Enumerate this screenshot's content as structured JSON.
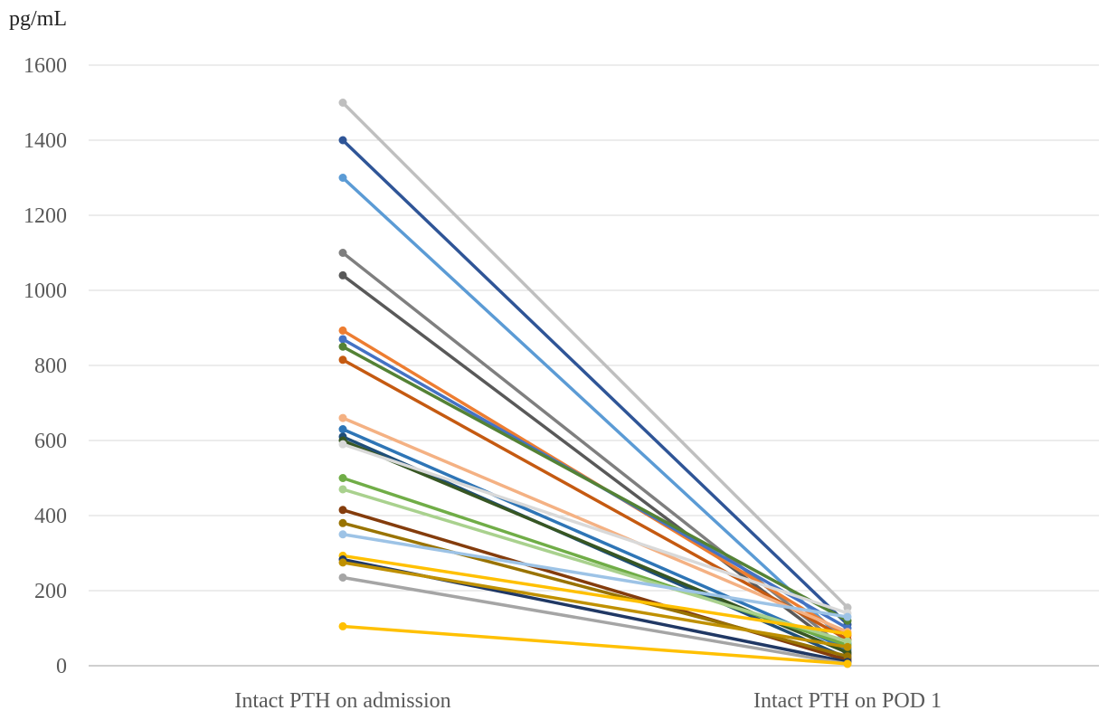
{
  "chart_data": {
    "type": "line",
    "unit_label": "pg/mL",
    "categories": [
      "Intact PTH on admission",
      "Intact PTH on POD 1"
    ],
    "y_ticks": [
      "0",
      "200",
      "400",
      "600",
      "800",
      "1000",
      "1200",
      "1400",
      "1600"
    ],
    "ylim": [
      0,
      1600
    ],
    "grid": true,
    "legend": "none",
    "series": [
      {
        "color": "#BFBFBF",
        "values": [
          1500,
          155
        ]
      },
      {
        "color": "#2F5597",
        "values": [
          1400,
          110
        ]
      },
      {
        "color": "#5B9BD5",
        "values": [
          1300,
          60
        ]
      },
      {
        "color": "#7F7F7F",
        "values": [
          1100,
          40
        ]
      },
      {
        "color": "#595959",
        "values": [
          1040,
          30
        ]
      },
      {
        "color": "#ED7D31",
        "values": [
          893,
          80
        ]
      },
      {
        "color": "#4472C4",
        "values": [
          870,
          100
        ]
      },
      {
        "color": "#548235",
        "values": [
          850,
          120
        ]
      },
      {
        "color": "#C55A11",
        "values": [
          815,
          70
        ]
      },
      {
        "color": "#F4B183",
        "values": [
          660,
          90
        ]
      },
      {
        "color": "#2E75B6",
        "values": [
          630,
          45
        ]
      },
      {
        "color": "#1F4E79",
        "values": [
          610,
          20
        ]
      },
      {
        "color": "#375623",
        "values": [
          600,
          35
        ]
      },
      {
        "color": "#D9D9D9",
        "values": [
          590,
          140
        ]
      },
      {
        "color": "#70AD47",
        "values": [
          500,
          55
        ]
      },
      {
        "color": "#A9D18E",
        "values": [
          470,
          65
        ]
      },
      {
        "color": "#843C0C",
        "values": [
          415,
          15
        ]
      },
      {
        "color": "#997300",
        "values": [
          380,
          25
        ]
      },
      {
        "color": "#9DC3E6",
        "values": [
          350,
          130
        ]
      },
      {
        "color": "#FFC000",
        "values": [
          293,
          85
        ]
      },
      {
        "color": "#203864",
        "values": [
          283,
          10
        ]
      },
      {
        "color": "#BF9000",
        "values": [
          275,
          50
        ]
      },
      {
        "color": "#A5A5A5",
        "values": [
          235,
          5
        ]
      },
      {
        "color": "#FFC000",
        "values": [
          105,
          5
        ]
      }
    ]
  }
}
